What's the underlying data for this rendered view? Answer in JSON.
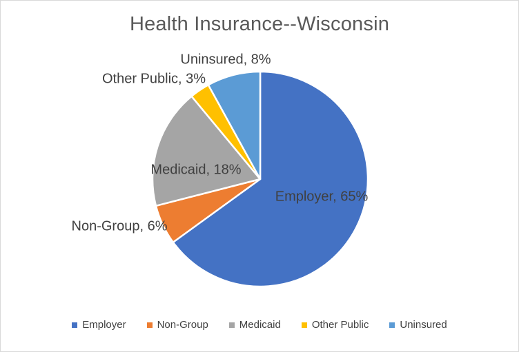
{
  "chart_data": {
    "type": "pie",
    "title": "Health Insurance--Wisconsin",
    "categories": [
      "Employer",
      "Non-Group",
      "Medicaid",
      "Other Public",
      "Uninsured"
    ],
    "values": [
      65,
      6,
      18,
      3,
      8
    ],
    "unit": "%",
    "colors": [
      "#4472C4",
      "#ED7D31",
      "#A5A5A5",
      "#FFC000",
      "#5B9BD5"
    ],
    "data_labels": [
      "Employer, 65%",
      "Non-Group, 6%",
      "Medicaid, 18%",
      "Other Public, 3%",
      "Uninsured, 8%"
    ],
    "start_angle_deg": 0,
    "direction": "clockwise",
    "legend_position": "bottom",
    "title_color": "#595959",
    "label_color": "#404040",
    "slice_border_color": "#FFFFFF",
    "background_color": "#FFFFFF",
    "frame_border_color": "#D9D9D9"
  }
}
